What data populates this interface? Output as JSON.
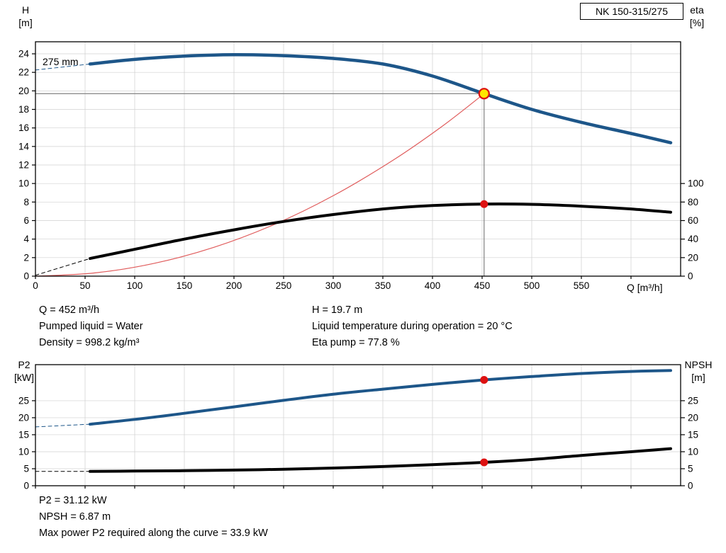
{
  "info_top": {
    "left": [
      "Q = 452 m³/h",
      "Pumped liquid = Water",
      "Density = 998.2 kg/m³"
    ],
    "right": [
      "H = 19.7 m",
      "Liquid temperature during operation = 20 °C",
      "Eta pump = 77.8 %"
    ]
  },
  "info_bottom": [
    "P2 = 31.12 kW",
    "NPSH = 6.87 m",
    "Max power P2 required along the curve = 33.9 kW"
  ],
  "colors": {
    "curve_blue": "#1d5689",
    "curve_black": "#000000",
    "system_curve_red": "#e05c5c",
    "duty_red": "#dd1111",
    "duty_yellow": "#ffe600",
    "grid": "#d0d0d0",
    "ref_line": "#808080"
  },
  "chart_data": [
    {
      "id": "hq-eta",
      "type": "line",
      "title": "NK 150-315/275",
      "xlabel": "Q [m³/h]",
      "ylabel": "H [m]",
      "ylabel_right": "eta [%]",
      "axis_corner_left": [
        "H",
        "[m]"
      ],
      "axis_corner_right": [
        "eta",
        "[%]"
      ],
      "annotation": {
        "text": "275 mm"
      },
      "xlim": [
        0,
        650
      ],
      "ylim": [
        0,
        25.3
      ],
      "right_scale": 10,
      "x_ticks": [
        0,
        50,
        100,
        150,
        200,
        250,
        300,
        350,
        400,
        450,
        500,
        550,
        600
      ],
      "x_label_max": 550,
      "show_x_labels": true,
      "y_ticks_left": [
        0,
        2,
        4,
        6,
        8,
        10,
        12,
        14,
        16,
        18,
        20,
        22,
        24
      ],
      "y_ticks_right": [
        0,
        20,
        40,
        60,
        80,
        100
      ],
      "grid": true,
      "duty_point": {
        "Q": 452,
        "H": 19.7,
        "eta_pct": 77.8
      },
      "ref_lines": [
        {
          "type": "v",
          "x": 452,
          "y1": 0,
          "y2": 19.7
        },
        {
          "type": "h",
          "y": 19.7,
          "x1": 0,
          "x2": 452
        }
      ],
      "series": [
        {
          "name": "head-curve-dashed-lead",
          "color": "curve_blue",
          "width": 1,
          "dash": "5 4",
          "points": [
            [
              0,
              22.25
            ],
            [
              55,
              22.9
            ]
          ]
        },
        {
          "name": "eta-curve-dashed-lead",
          "color": "curve_black",
          "width": 1,
          "dash": "5 4",
          "points": [
            [
              0,
              0.1
            ],
            [
              55,
              1.9
            ]
          ]
        },
        {
          "name": "system-curve",
          "color": "system_curve_red",
          "width": 1.2,
          "points": [
            [
              0,
              0
            ],
            [
              60,
              0.35
            ],
            [
              120,
              1.39
            ],
            [
              180,
              3.12
            ],
            [
              240,
              5.55
            ],
            [
              300,
              8.68
            ],
            [
              360,
              12.5
            ],
            [
              410,
              16.2
            ],
            [
              452,
              19.7
            ]
          ]
        },
        {
          "name": "eta-curve",
          "color": "curve_black",
          "width": 4,
          "points": [
            [
              55,
              1.9
            ],
            [
              100,
              2.9
            ],
            [
              150,
              4.0
            ],
            [
              200,
              5.0
            ],
            [
              250,
              5.9
            ],
            [
              300,
              6.65
            ],
            [
              350,
              7.25
            ],
            [
              400,
              7.62
            ],
            [
              452,
              7.78
            ],
            [
              500,
              7.75
            ],
            [
              550,
              7.55
            ],
            [
              600,
              7.25
            ],
            [
              640,
              6.9
            ]
          ]
        },
        {
          "name": "head-curve",
          "color": "curve_blue",
          "width": 4.5,
          "points": [
            [
              55,
              22.9
            ],
            [
              100,
              23.4
            ],
            [
              150,
              23.75
            ],
            [
              200,
              23.9
            ],
            [
              250,
              23.8
            ],
            [
              300,
              23.5
            ],
            [
              350,
              22.9
            ],
            [
              400,
              21.6
            ],
            [
              452,
              19.7
            ],
            [
              500,
              18.0
            ],
            [
              550,
              16.6
            ],
            [
              600,
              15.4
            ],
            [
              640,
              14.4
            ]
          ]
        }
      ],
      "markers": [
        {
          "name": "duty-point-marker",
          "x": 452,
          "y": 19.7,
          "r": 7,
          "fill": "duty_yellow",
          "stroke": "duty_red",
          "stroke_width": 2.2
        },
        {
          "name": "eta-duty-marker",
          "x": 452,
          "y": 7.78,
          "r": 5.5,
          "fill": "duty_red"
        }
      ]
    },
    {
      "id": "p2-npsh",
      "type": "line",
      "title": "",
      "xlabel": "",
      "ylabel": "P2 [kW]",
      "ylabel_right": "NPSH [m]",
      "axis_corner_left": [
        "P2",
        "[kW]"
      ],
      "axis_corner_right": [
        "NPSH",
        "[m]"
      ],
      "xlim": [
        0,
        650
      ],
      "ylim": [
        0,
        35.6
      ],
      "right_scale": 1,
      "x_ticks": [
        0,
        50,
        100,
        150,
        200,
        250,
        300,
        350,
        400,
        450,
        500,
        550,
        600
      ],
      "x_label_max": 550,
      "show_x_labels": false,
      "y_ticks_left": [
        0,
        5,
        10,
        15,
        20,
        25
      ],
      "y_ticks_right": [
        0,
        5,
        10,
        15,
        20,
        25
      ],
      "grid": true,
      "duty_point": {
        "Q": 452,
        "P2_kW": 31.12,
        "NPSH_m": 6.87
      },
      "ref_lines": [],
      "series": [
        {
          "name": "p2-curve-dashed-lead",
          "color": "curve_blue",
          "width": 1,
          "dash": "5 4",
          "points": [
            [
              0,
              17.3
            ],
            [
              55,
              18.1
            ]
          ]
        },
        {
          "name": "npsh-curve-dashed-lead",
          "color": "curve_black",
          "width": 1,
          "dash": "5 4",
          "points": [
            [
              0,
              4.2
            ],
            [
              55,
              4.2
            ]
          ]
        },
        {
          "name": "p2-curve",
          "color": "curve_blue",
          "width": 4,
          "points": [
            [
              55,
              18.1
            ],
            [
              100,
              19.5
            ],
            [
              150,
              21.3
            ],
            [
              200,
              23.2
            ],
            [
              250,
              25.1
            ],
            [
              300,
              26.9
            ],
            [
              350,
              28.4
            ],
            [
              400,
              29.8
            ],
            [
              452,
              31.12
            ],
            [
              500,
              32.1
            ],
            [
              550,
              33.0
            ],
            [
              600,
              33.6
            ],
            [
              640,
              33.9
            ]
          ]
        },
        {
          "name": "npsh-curve",
          "color": "curve_black",
          "width": 4,
          "points": [
            [
              55,
              4.2
            ],
            [
              100,
              4.3
            ],
            [
              150,
              4.42
            ],
            [
              200,
              4.6
            ],
            [
              250,
              4.85
            ],
            [
              300,
              5.2
            ],
            [
              350,
              5.65
            ],
            [
              400,
              6.2
            ],
            [
              452,
              6.87
            ],
            [
              500,
              7.7
            ],
            [
              550,
              8.9
            ],
            [
              600,
              10.0
            ],
            [
              640,
              10.9
            ]
          ]
        }
      ],
      "markers": [
        {
          "name": "p2-duty-marker",
          "x": 452,
          "y": 31.12,
          "r": 5.5,
          "fill": "duty_red"
        },
        {
          "name": "npsh-duty-marker",
          "x": 452,
          "y": 6.87,
          "r": 5.5,
          "fill": "duty_red"
        }
      ]
    }
  ]
}
